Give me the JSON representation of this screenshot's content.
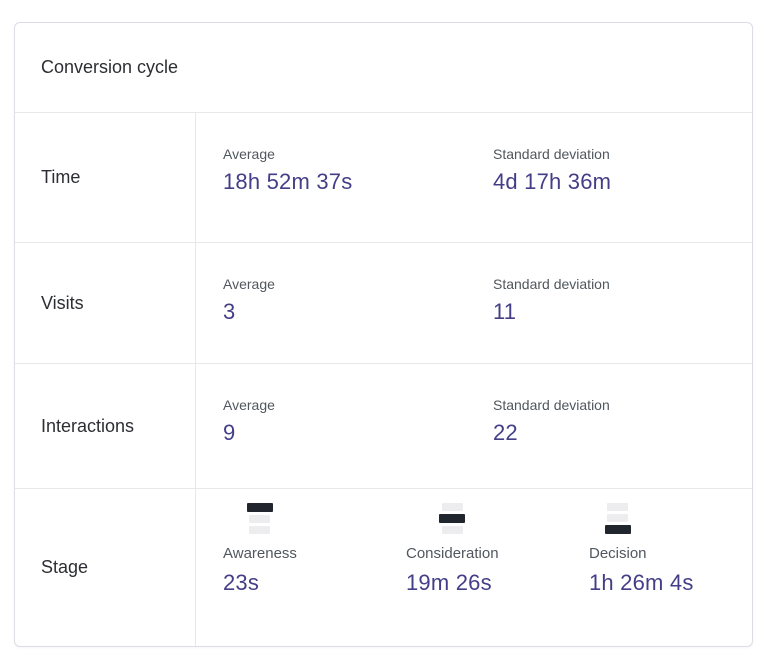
{
  "title": "Conversion cycle",
  "metric_rows": [
    {
      "label": "Time",
      "average_label": "Average",
      "average_value": "18h 52m 37s",
      "stddev_label": "Standard deviation",
      "stddev_value": "4d 17h 36m"
    },
    {
      "label": "Visits",
      "average_label": "Average",
      "average_value": "3",
      "stddev_label": "Standard deviation",
      "stddev_value": "11"
    },
    {
      "label": "Interactions",
      "average_label": "Average",
      "average_value": "9",
      "stddev_label": "Standard deviation",
      "stddev_value": "22"
    }
  ],
  "stage_row": {
    "label": "Stage",
    "stages": [
      {
        "label": "Awareness",
        "value": "23s",
        "active_bar": 0
      },
      {
        "label": "Consideration",
        "value": "19m 26s",
        "active_bar": 1
      },
      {
        "label": "Decision",
        "value": "1h 26m 4s",
        "active_bar": 2
      }
    ]
  },
  "colors": {
    "value_accent": "#433e87",
    "label_gray": "#50575e",
    "text_dark": "#2d2e33",
    "card_border": "#dcdde6",
    "divider": "#e8e8ec",
    "funnel_active": "#20252e",
    "funnel_inactive": "#ededef"
  }
}
